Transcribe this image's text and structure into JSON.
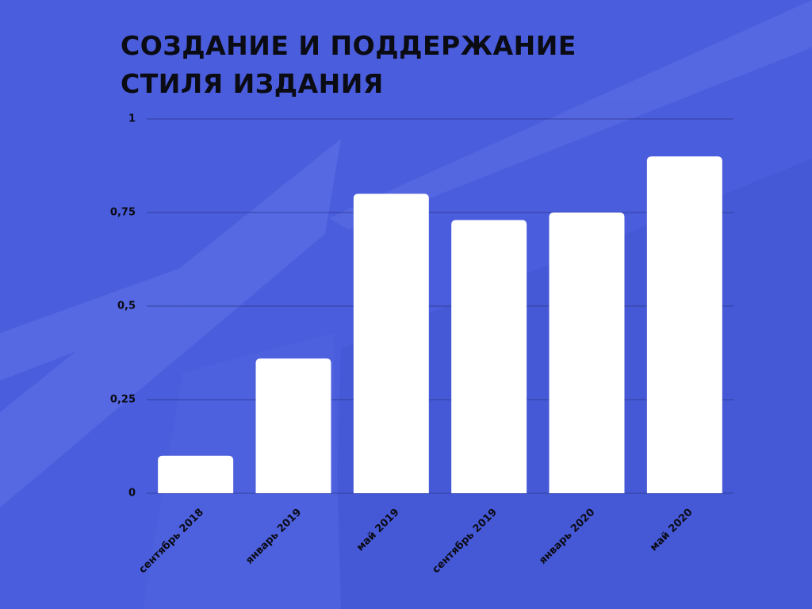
{
  "chart_data": {
    "type": "bar",
    "title": "СОЗДАНИЕ И ПОДДЕРЖАНИЕ СТИЛЯ ИЗДАНИЯ",
    "categories": [
      "сентябрь 2018",
      "январь 2019",
      "май 2019",
      "сентябрь 2019",
      "январь 2020",
      "май 2020"
    ],
    "values": [
      0.1,
      0.36,
      0.8,
      0.73,
      0.75,
      0.9
    ],
    "color": "#ffffff",
    "ylim": [
      0,
      1
    ],
    "yticks": [
      0,
      {
        "value": 0.25,
        "label": "0,25"
      },
      {
        "value": 0.5,
        "label": "0,5"
      },
      {
        "value": 0.75,
        "label": "0,75"
      },
      1
    ],
    "grid": true
  }
}
